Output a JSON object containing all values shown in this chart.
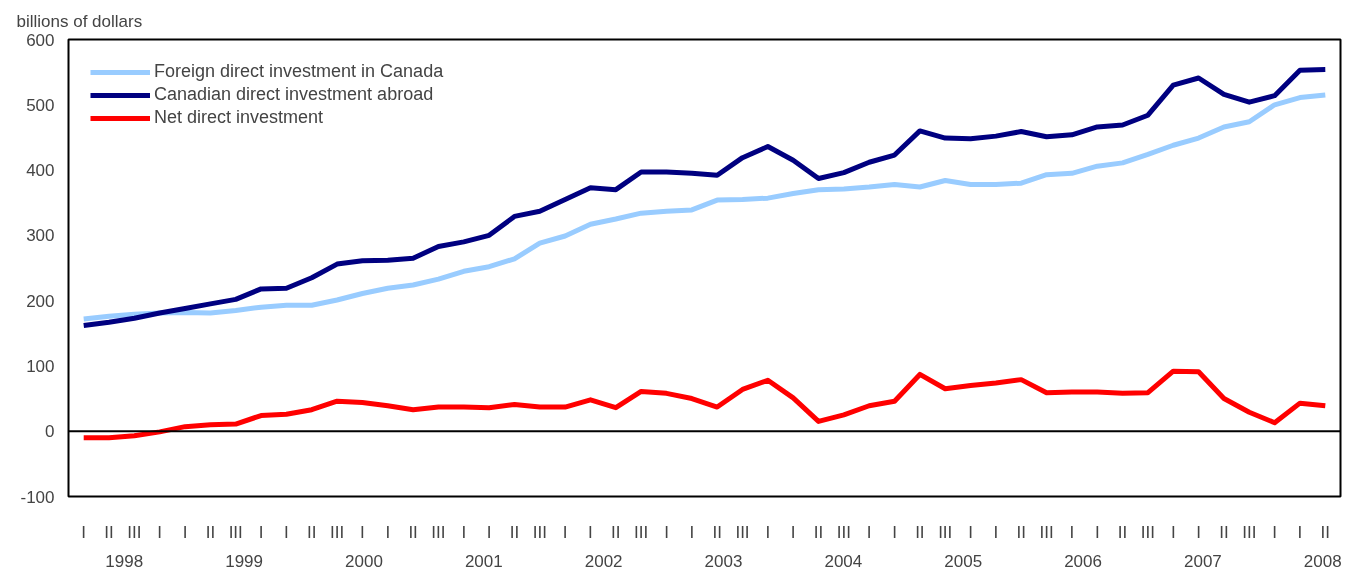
{
  "chart_data": {
    "type": "line",
    "ylabel": "billions of dollars",
    "categories": [
      "I",
      "II",
      "III",
      "I",
      "I",
      "II",
      "III",
      "I",
      "I",
      "II",
      "III",
      "I",
      "I",
      "II",
      "III",
      "I",
      "I",
      "II",
      "III",
      "I",
      "I",
      "II",
      "III",
      "I",
      "I",
      "II",
      "III",
      "I",
      "I",
      "II",
      "III",
      "I",
      "I",
      "II",
      "III",
      "I",
      "I",
      "II",
      "III",
      "I",
      "I",
      "II",
      "III",
      "I",
      "I",
      "II",
      "III",
      "I",
      "I",
      "II"
    ],
    "annotations": [
      "1998",
      "1999",
      "2000",
      "2001",
      "2002",
      "2003",
      "2004",
      "2005",
      "2006",
      "2007",
      "2008"
    ],
    "ylim": [
      -100,
      600
    ],
    "yticks": [
      -100,
      0,
      100,
      200,
      300,
      400,
      500,
      600
    ],
    "series": [
      {
        "name": "Foreign direct investment in Canada",
        "color": "#99ccff",
        "values": [
          172,
          176,
          179,
          181,
          182,
          181,
          185,
          190,
          193,
          193,
          201,
          211,
          219,
          224,
          233,
          245,
          252,
          264,
          288,
          299,
          317,
          325,
          334,
          337,
          339,
          354,
          355,
          357,
          364,
          370,
          371,
          374,
          378,
          374,
          384,
          378,
          378,
          380,
          393,
          395,
          406,
          411,
          424,
          438,
          449,
          466,
          474,
          500,
          511,
          515
        ]
      },
      {
        "name": "Canadian direct investment abroad",
        "color": "#000080",
        "values": [
          162,
          167,
          173,
          181,
          188,
          195,
          202,
          218,
          219,
          235,
          256,
          261,
          262,
          265,
          283,
          290,
          300,
          329,
          337,
          355,
          373,
          370,
          397,
          397,
          395,
          392,
          419,
          436,
          415,
          387,
          396,
          412,
          423,
          460,
          449,
          448,
          452,
          459,
          451,
          454,
          466,
          469,
          484,
          530,
          541,
          516,
          504,
          514,
          553,
          554
        ]
      },
      {
        "name": "Net direct investment",
        "color": "#ff0000",
        "values": [
          -10,
          -10,
          -7,
          -1,
          7,
          10,
          11,
          24,
          26,
          33,
          46,
          44,
          39,
          33,
          37,
          37,
          36,
          41,
          37,
          37,
          48,
          36,
          61,
          58,
          50,
          37,
          64,
          78,
          51,
          15,
          25,
          39,
          46,
          87,
          65,
          70,
          74,
          79,
          59,
          60,
          60,
          58,
          59,
          92,
          91,
          50,
          29,
          13,
          43,
          39
        ]
      }
    ],
    "ref_lines": [
      {
        "axis": "y",
        "value": 0,
        "color": "#000000"
      }
    ],
    "legend": "top left",
    "grid": false,
    "line_style": "solid",
    "marker": "none"
  }
}
